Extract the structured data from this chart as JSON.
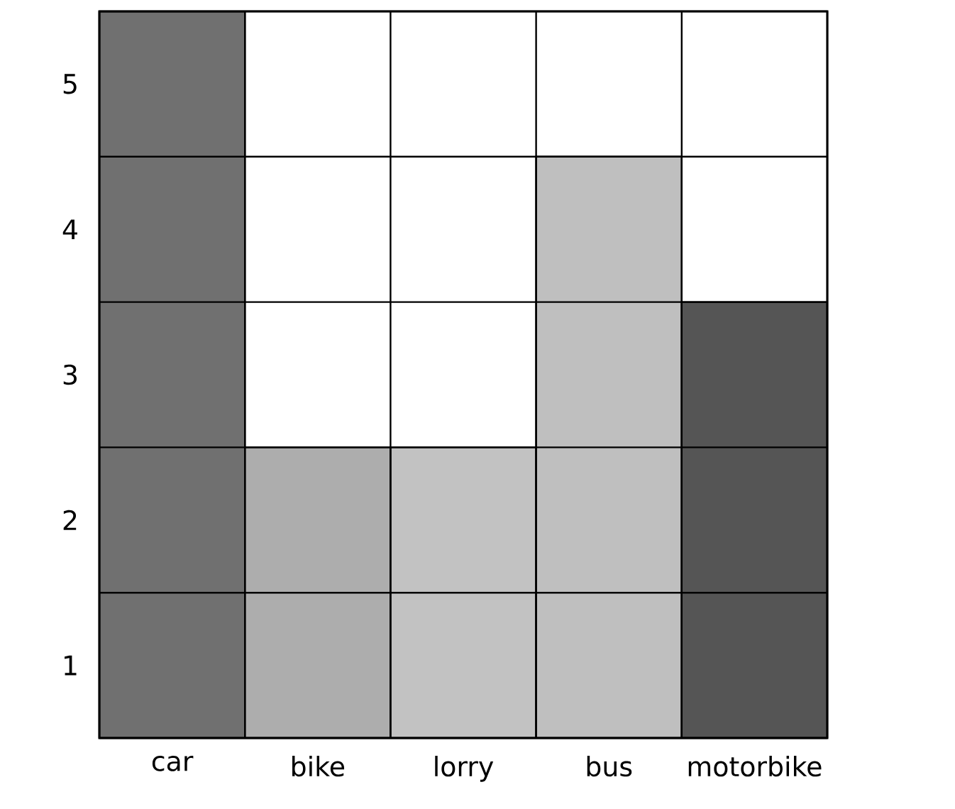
{
  "chart_data": {
    "type": "bar",
    "categories": [
      "car",
      "bike",
      "lorry",
      "bus",
      "motorbike"
    ],
    "values": [
      5,
      2,
      2,
      4,
      3
    ],
    "colors": [
      "#707070",
      "#adadad",
      "#c2c2c2",
      "#bfbfbf",
      "#555555"
    ],
    "ylim": [
      0,
      5
    ],
    "yticks": [
      {
        "value": 0.5,
        "label": "1"
      },
      {
        "value": 1.5,
        "label": "2"
      },
      {
        "value": 2.5,
        "label": "3"
      },
      {
        "value": 3.5,
        "label": "4"
      },
      {
        "value": 4.5,
        "label": "5"
      }
    ],
    "grid": true
  }
}
